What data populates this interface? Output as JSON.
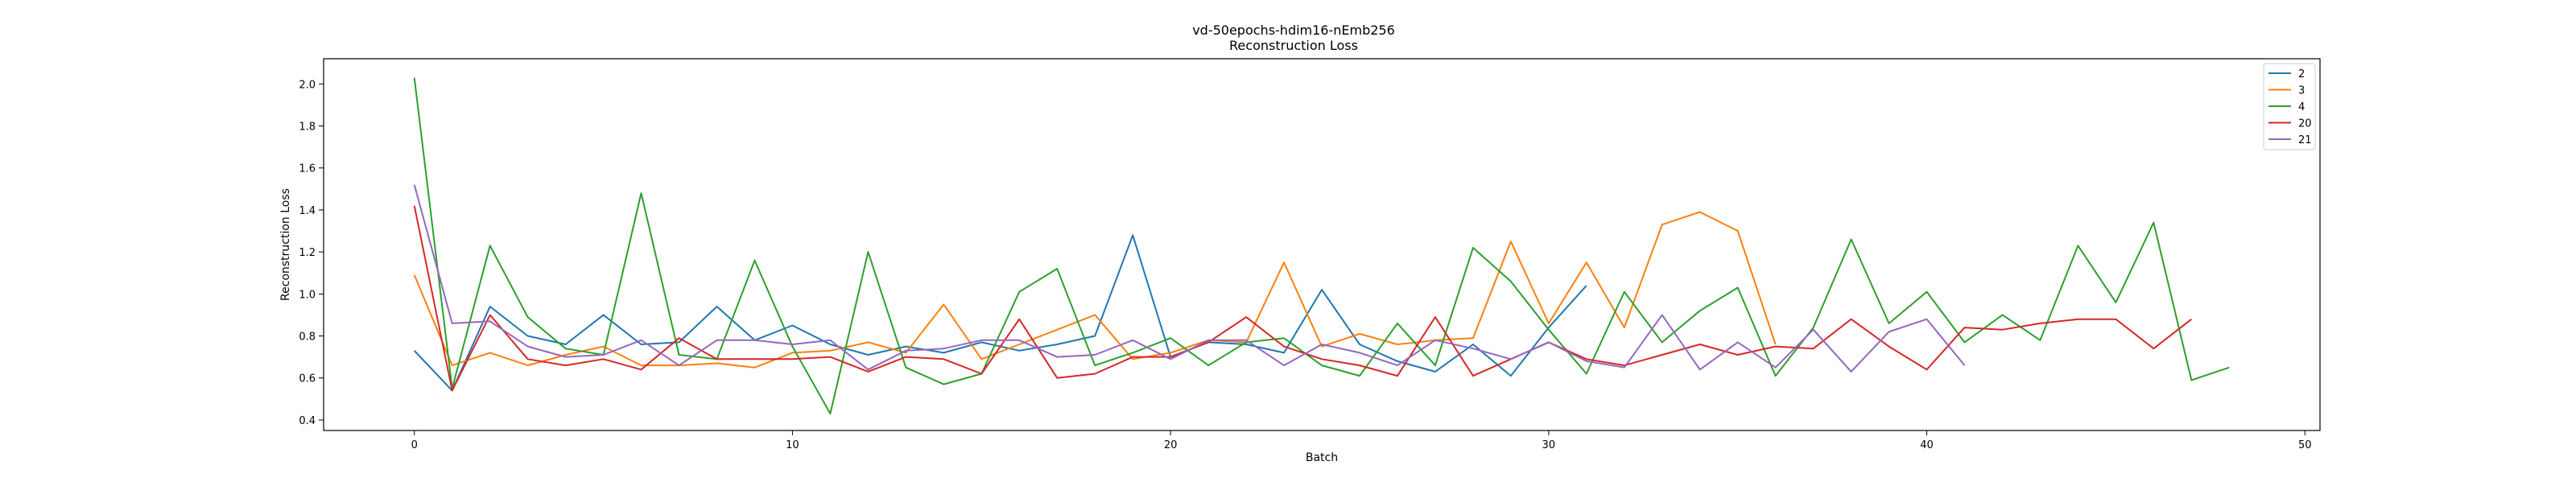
{
  "chart_data": {
    "type": "line",
    "title": "vd-50epochs-hdim16-nEmb256",
    "subtitle": "Reconstruction Loss",
    "xlabel": "Batch",
    "ylabel": "Reconstruction Loss",
    "xlim": [
      -2.4,
      50.4
    ],
    "ylim": [
      0.35,
      2.12
    ],
    "xticks": [
      0,
      10,
      20,
      30,
      40,
      50
    ],
    "yticks": [
      0.4,
      0.6,
      0.8,
      1.0,
      1.2,
      1.4,
      1.6,
      1.8,
      2.0
    ],
    "x_tick_labels": [
      "0",
      "10",
      "20",
      "30",
      "40",
      "50"
    ],
    "y_tick_labels": [
      "0.4",
      "0.6",
      "0.8",
      "1.0",
      "1.2",
      "1.4",
      "1.6",
      "1.8",
      "2.0"
    ],
    "grid": false,
    "legend_position": "top-right",
    "series": [
      {
        "name": "2",
        "color": "#1f77b4",
        "values": [
          0.73,
          0.54,
          0.94,
          0.8,
          0.76,
          0.9,
          0.76,
          0.77,
          0.94,
          0.78,
          0.85,
          0.76,
          0.71,
          0.75,
          0.72,
          0.77,
          0.73,
          0.76,
          0.8,
          1.28,
          0.7,
          0.77,
          0.76,
          0.72,
          1.02,
          0.76,
          0.68,
          0.63,
          0.76,
          0.61,
          0.84,
          1.04
        ]
      },
      {
        "name": "3",
        "color": "#ff7f0e",
        "values": [
          1.09,
          0.66,
          0.72,
          0.66,
          0.71,
          0.75,
          0.66,
          0.66,
          0.67,
          0.65,
          0.72,
          0.73,
          0.77,
          0.72,
          0.95,
          0.69,
          0.76,
          0.83,
          0.9,
          0.69,
          0.72,
          0.78,
          0.77,
          1.15,
          0.75,
          0.81,
          0.76,
          0.78,
          0.79,
          1.25,
          0.86,
          1.15,
          0.84,
          1.33,
          1.39,
          1.3,
          0.76
        ]
      },
      {
        "name": "4",
        "color": "#2ca02c",
        "values": [
          2.03,
          0.55,
          1.23,
          0.89,
          0.74,
          0.71,
          1.48,
          0.71,
          0.69,
          1.16,
          0.75,
          0.43,
          1.2,
          0.65,
          0.57,
          0.62,
          1.01,
          1.12,
          0.66,
          0.72,
          0.79,
          0.66,
          0.77,
          0.79,
          0.66,
          0.61,
          0.86,
          0.66,
          1.22,
          1.06,
          0.83,
          0.62,
          1.01,
          0.77,
          0.92,
          1.03,
          0.61,
          0.84,
          1.26,
          0.86,
          1.01,
          0.77,
          0.9,
          0.78,
          1.23,
          0.96,
          1.34,
          0.59,
          0.65
        ]
      },
      {
        "name": "20",
        "color": "#d62728",
        "values": [
          1.42,
          0.54,
          0.9,
          0.69,
          0.66,
          0.69,
          0.64,
          0.79,
          0.69,
          0.69,
          0.69,
          0.7,
          0.63,
          0.7,
          0.69,
          0.62,
          0.88,
          0.6,
          0.62,
          0.7,
          0.7,
          0.77,
          0.89,
          0.75,
          0.69,
          0.66,
          0.61,
          0.89,
          0.61,
          0.69,
          0.77,
          0.69,
          0.66,
          0.71,
          0.76,
          0.71,
          0.75,
          0.74,
          0.88,
          0.75,
          0.64,
          0.84,
          0.83,
          0.86,
          0.88,
          0.88,
          0.74,
          0.88
        ]
      },
      {
        "name": "21",
        "color": "#9467bd",
        "values": [
          1.52,
          0.86,
          0.87,
          0.75,
          0.7,
          0.71,
          0.78,
          0.66,
          0.78,
          0.78,
          0.76,
          0.78,
          0.64,
          0.73,
          0.74,
          0.78,
          0.78,
          0.7,
          0.71,
          0.78,
          0.69,
          0.78,
          0.78,
          0.66,
          0.76,
          0.72,
          0.66,
          0.78,
          0.74,
          0.69,
          0.77,
          0.68,
          0.65,
          0.9,
          0.64,
          0.77,
          0.65,
          0.83,
          0.63,
          0.82,
          0.88,
          0.66
        ]
      }
    ]
  }
}
